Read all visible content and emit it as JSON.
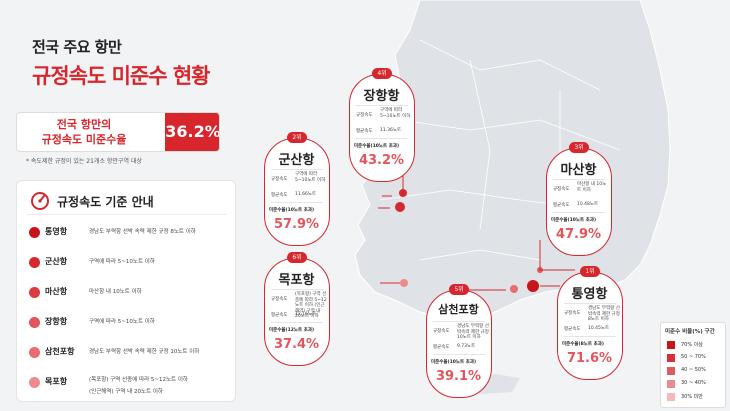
{
  "header": {
    "title_line1": "전국 주요 항만",
    "title_line2": "규정속도 미준수 현황"
  },
  "summary": {
    "label_line1": "전국 항만의",
    "label_line2": "규정속도 미준수율",
    "value": "36.2%",
    "note": "* 속도제한 규정이 있는 21개소 항만구역 대상"
  },
  "guide": {
    "title": "규정속도 기준 안내",
    "icon": "speedometer-icon",
    "items": [
      {
        "name": "통영항",
        "desc": "경남도 부력항 선박 속력 제한 규정 8노트 이하",
        "desc2": "",
        "color": "#c8141b"
      },
      {
        "name": "군산항",
        "desc": "구역에 따라 5~10노트 이하",
        "desc2": "",
        "color": "#d42a2f"
      },
      {
        "name": "마산항",
        "desc": "마산항 내 10노트 이하",
        "desc2": "",
        "color": "#dc3a3f"
      },
      {
        "name": "장항항",
        "desc": "구역에 따라 5~10노트 이하",
        "desc2": "",
        "color": "#e2555a"
      },
      {
        "name": "삼천포항",
        "desc": "경남도 부력항 선박 속력 제한 규정 10노트 이하",
        "desc2": "",
        "color": "#e86c70"
      },
      {
        "name": "목포항",
        "desc": "(목포항) 구역 선종에 따라 5~12노트 이하",
        "desc2": "(인근해역) 구역 내 20노트 이하",
        "color": "#ee8a8d"
      }
    ]
  },
  "common": {
    "speed_label": "규정속도",
    "avg_label": "평균속도",
    "noncompliance_label": "미준수율(10노트 초과)",
    "noncompliance_label_12": "미준수율(12노트 초과)"
  },
  "ports": [
    {
      "rank": "4위",
      "name": "장항항",
      "speed": "구역에 따라 5~10노트 이하",
      "avg": "11.36노트",
      "nc_label": "미준수율(10노트 초과)",
      "rate": "43.2%"
    },
    {
      "rank": "2위",
      "name": "군산항",
      "speed": "구역에 따라 5~10노트 이하",
      "avg": "11.66노트",
      "nc_label": "미준수율(10노트 초과)",
      "rate": "57.9%"
    },
    {
      "rank": "3위",
      "name": "마산항",
      "speed": "마산항 내 10노트 이하",
      "avg": "10.48노트",
      "nc_label": "미준수율(10노트 초과)",
      "rate": "47.9%"
    },
    {
      "rank": "6위",
      "name": "목포항",
      "speed": "(목포항) 구역 선종에 따라 5~12노트 이하 (인근해역) 구역 내 20노트 이하",
      "avg": "12.16노트",
      "nc_label": "미준수율(12노트 초과)",
      "rate": "37.4%"
    },
    {
      "rank": "5위",
      "name": "삼천포항",
      "speed": "경남도 부력항 선박속력 제한 규정 10노트 이하",
      "avg": "9.73노트",
      "nc_label": "미준수율(10노트 초과)",
      "rate": "39.1%"
    },
    {
      "rank": "1위",
      "name": "통영항",
      "speed": "경남도 부력항 선박속력 제한 규정 8노트 이하",
      "avg": "10.45노트",
      "nc_label": "미준수율(8노트 초과)",
      "rate": "71.6%"
    }
  ],
  "legend": {
    "title": "미준수 비율(%) 구간",
    "items": [
      {
        "label": "70% 이상",
        "color": "#c8141b"
      },
      {
        "label": "50 ~ 70%",
        "color": "#d8303a"
      },
      {
        "label": "40 ~ 50%",
        "color": "#e05a60"
      },
      {
        "label": "30 ~ 40%",
        "color": "#e98a8e"
      },
      {
        "label": "30% 미만",
        "color": "#f3b9bb"
      }
    ]
  }
}
